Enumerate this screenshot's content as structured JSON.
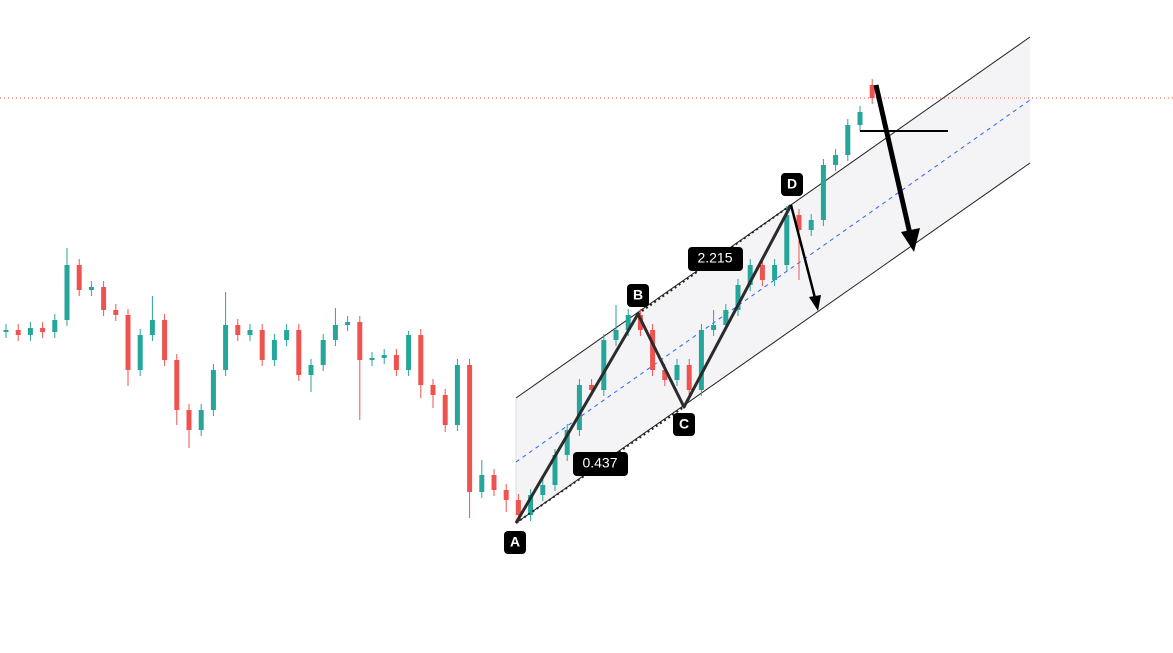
{
  "chart_data": {
    "type": "candlestick",
    "ylim": [
      0,
      60
    ],
    "up_color": "#26a69a",
    "down_color": "#ef5350",
    "open": [
      28.8,
      29,
      28.5,
      29.2,
      28.8,
      30,
      35.5,
      33,
      33.3,
      31,
      30.5,
      25,
      28.5,
      30,
      26,
      21,
      19,
      21,
      25,
      29.5,
      28.5,
      29,
      26,
      28,
      29,
      24.5,
      25.5,
      28,
      29.5,
      29.8,
      26,
      26.2,
      26.5,
      25,
      28.5,
      23.5,
      22.5,
      19.5,
      25.5,
      12.8,
      14.5,
      13,
      12,
      10.5,
      12.5,
      13.5,
      16.5,
      19,
      23.5,
      23,
      28,
      29,
      30.5,
      29,
      25,
      24,
      25.5,
      23,
      29,
      29.5,
      31,
      33.5,
      35.5,
      34,
      35.5,
      40.5,
      39,
      40,
      45.5,
      46.5,
      49.5,
      53.5
    ],
    "high": [
      29.6,
      29.6,
      29.8,
      29.8,
      30.6,
      37.2,
      36.1,
      33.9,
      33.9,
      31.6,
      31.1,
      29.1,
      32.4,
      30.6,
      26.6,
      21.6,
      21.6,
      25.6,
      32.8,
      30.1,
      29.6,
      29.6,
      28.6,
      29.6,
      29.6,
      26.1,
      28.6,
      31.2,
      30.4,
      30.4,
      26.8,
      27.1,
      27.1,
      28.9,
      29.1,
      24.1,
      23.1,
      26.1,
      26.1,
      16,
      15.1,
      13.6,
      12.6,
      13.1,
      14.1,
      17.1,
      19.6,
      24.1,
      24.1,
      28.6,
      31.5,
      31.1,
      31.1,
      29.6,
      25.6,
      26.1,
      26.1,
      29.6,
      31,
      31.6,
      34.1,
      36.1,
      36.1,
      36.1,
      41.4,
      41.1,
      40.6,
      46.1,
      47.1,
      50.1,
      51.4,
      54.1
    ],
    "low": [
      28.2,
      27.9,
      27.9,
      28.2,
      28.2,
      29.4,
      32.4,
      32.4,
      30.4,
      29.9,
      23.4,
      24.4,
      27.9,
      25.4,
      19.5,
      17.2,
      18.4,
      20.4,
      24.4,
      27.9,
      27.9,
      25.4,
      25.4,
      27.4,
      23.9,
      22.8,
      24.9,
      27.4,
      28.9,
      20,
      25.4,
      25.6,
      24.4,
      24.4,
      22.2,
      21.2,
      18.8,
      18.9,
      10.2,
      12.2,
      12.4,
      10.8,
      9.7,
      9.9,
      11.9,
      12.9,
      15.9,
      18.4,
      22.4,
      22.4,
      27.4,
      28.4,
      28.4,
      24.4,
      23.4,
      23.4,
      22.4,
      22.4,
      28.4,
      28.9,
      30.4,
      32.9,
      33.4,
      33.4,
      34.9,
      34,
      38.4,
      39.4,
      44.9,
      45.9,
      48.9,
      51.6
    ],
    "close": [
      29,
      28.5,
      29.2,
      28.8,
      30,
      35.5,
      33,
      33.3,
      31,
      30.5,
      25,
      28.5,
      30,
      26,
      21,
      19,
      21,
      25,
      29.5,
      28.5,
      29,
      26,
      28,
      29,
      24.5,
      25.5,
      28,
      29.5,
      29.8,
      26,
      26.2,
      26.5,
      25,
      28.5,
      23.5,
      22.5,
      19.5,
      25.5,
      12.8,
      14.5,
      13,
      12,
      10.5,
      12.5,
      13.5,
      16.5,
      19,
      23.5,
      23,
      28,
      29,
      30.5,
      29,
      25,
      24,
      25.5,
      23,
      29,
      29.5,
      31,
      33.5,
      35.5,
      34,
      35.5,
      40.5,
      39,
      40,
      45.5,
      46.5,
      49.5,
      50.8,
      52.2
    ],
    "pattern_points": [
      "A",
      "B",
      "C",
      "D"
    ],
    "ratios": [
      2.215,
      0.437
    ]
  }
}
